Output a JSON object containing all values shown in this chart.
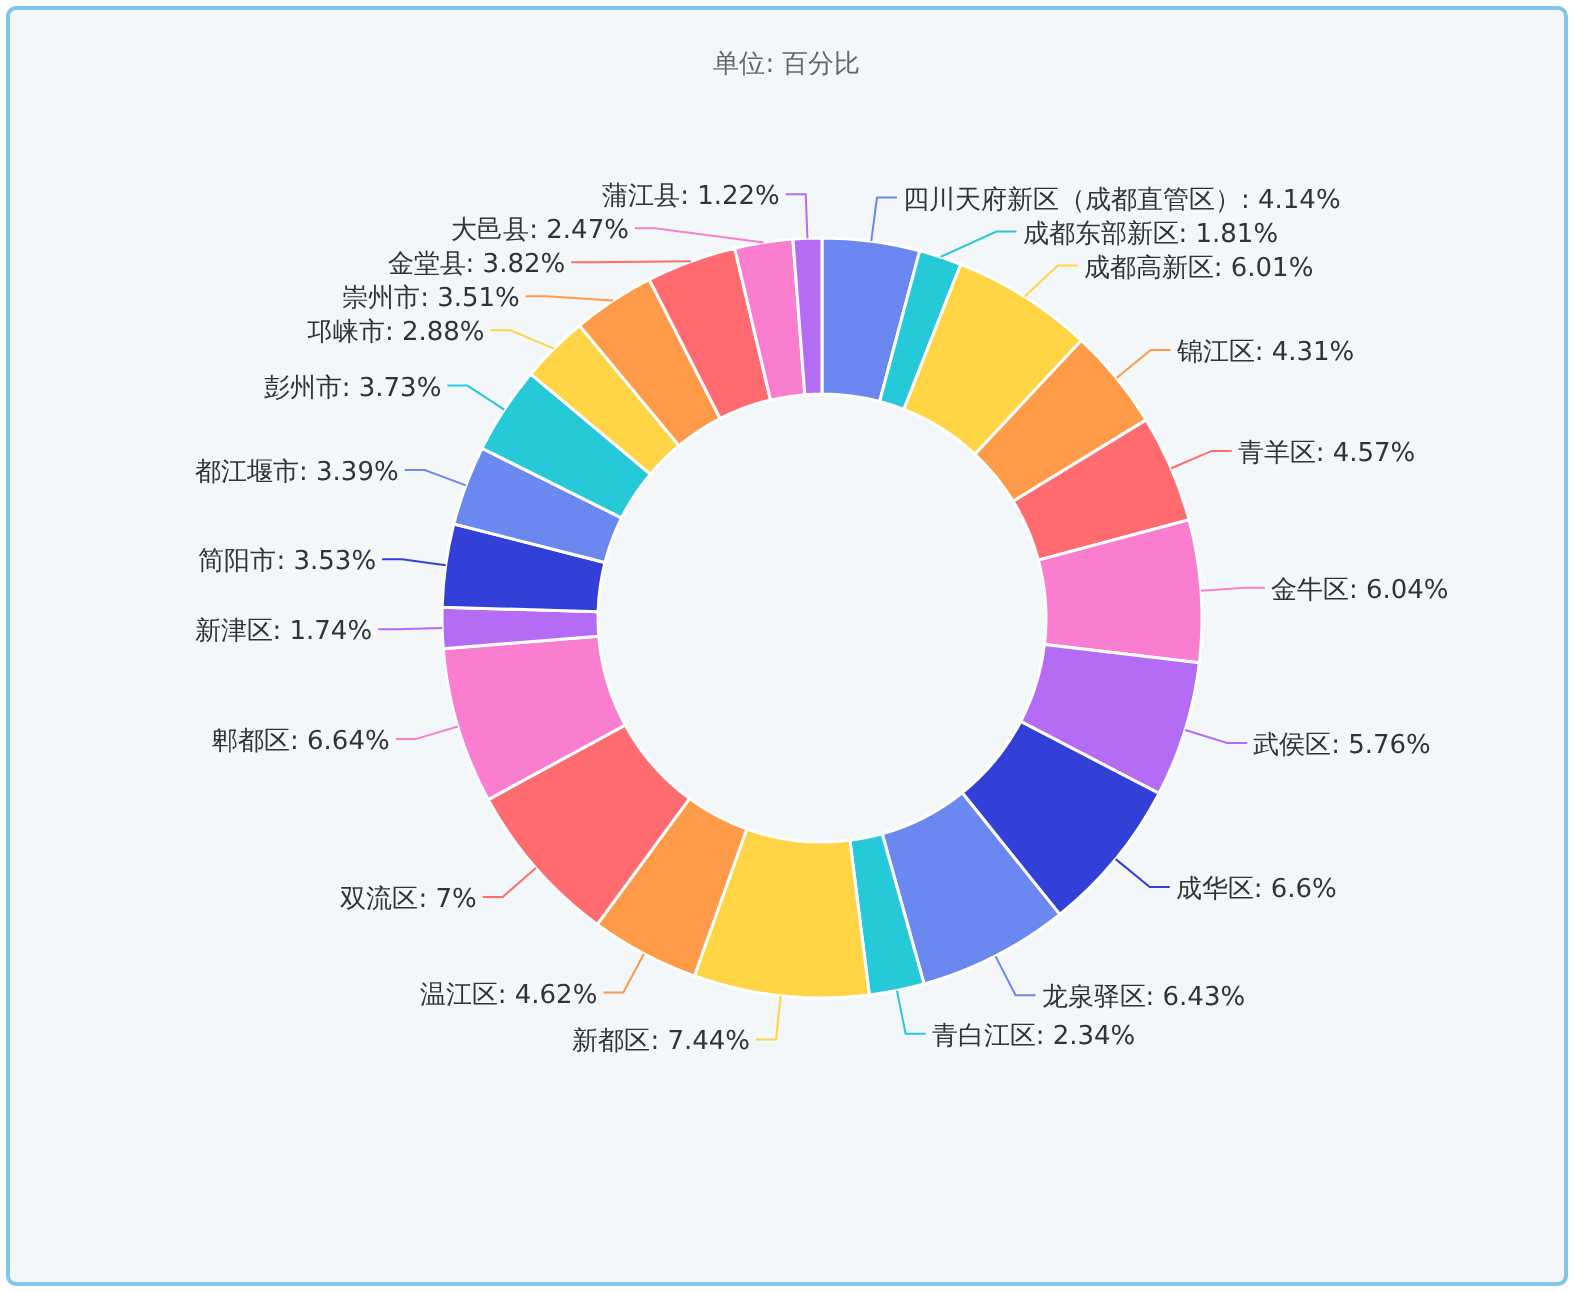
{
  "chart_data": {
    "type": "donut",
    "title": "单位: 百分比",
    "categories": [
      "四川天府新区（成都直管区）",
      "成都东部新区",
      "成都高新区",
      "锦江区",
      "青羊区",
      "金牛区",
      "武侯区",
      "成华区",
      "龙泉驿区",
      "青白江区",
      "新都区",
      "温江区",
      "双流区",
      "郫都区",
      "新津区",
      "简阳市",
      "都江堰市",
      "彭州市",
      "邛崃市",
      "崇州市",
      "金堂县",
      "大邑县",
      "蒲江县"
    ],
    "values": [
      4.14,
      1.81,
      6.01,
      4.31,
      4.57,
      6.04,
      5.76,
      6.6,
      6.43,
      2.34,
      7.44,
      4.62,
      7,
      6.64,
      1.74,
      3.53,
      3.39,
      3.73,
      2.88,
      3.51,
      3.82,
      2.47,
      1.22
    ],
    "value_labels": [
      "4.14%",
      "1.81%",
      "6.01%",
      "4.31%",
      "4.57%",
      "6.04%",
      "5.76%",
      "6.6%",
      "6.43%",
      "2.34%",
      "7.44%",
      "4.62%",
      "7%",
      "6.64%",
      "1.74%",
      "3.53%",
      "3.39%",
      "3.73%",
      "2.88%",
      "3.51%",
      "3.82%",
      "2.47%",
      "1.22%"
    ],
    "colors": [
      "#6a88f0",
      "#25c9d8",
      "#ffd545",
      "#ff9a48",
      "#ff6b6e",
      "#f97ed0",
      "#b56cf5",
      "#3340d8",
      "#6a88f0",
      "#25c9d8",
      "#ffd545",
      "#ff9a48",
      "#ff6b6e",
      "#f97ed0",
      "#b56cf5",
      "#3340d8",
      "#6a88f0",
      "#25c9d8",
      "#ffd545",
      "#ff9a48",
      "#ff6b6e",
      "#f97ed0",
      "#b56cf5"
    ]
  }
}
